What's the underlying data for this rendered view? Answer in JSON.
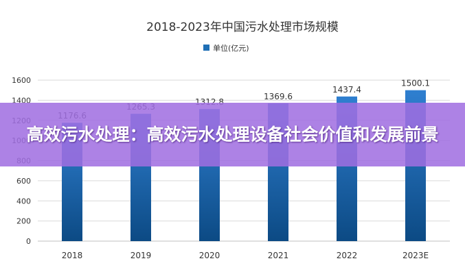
{
  "overlay": {
    "headline": "高效污水处理：高效污水处理设备社会价值和发展前景"
  },
  "colors": {
    "bar_top": "#2f7fd0",
    "bar_bottom": "#0c4a84",
    "legend_swatch": "#1f6fb5",
    "banner": "#a06ee1"
  },
  "chart_data": {
    "type": "bar",
    "title": "2018-2023年中国污水处理市场规模",
    "categories": [
      "2018",
      "2019",
      "2020",
      "2021",
      "2022",
      "2023E"
    ],
    "series": [
      {
        "name": "单位(亿元)",
        "values": [
          1176.6,
          1265.3,
          1312.8,
          1369.6,
          1437.4,
          1500.1
        ]
      }
    ],
    "value_labels": [
      "1176.6",
      "1265.3",
      "1312.8",
      "1369.6",
      "1437.4",
      "1500.1"
    ],
    "yticks": [
      0,
      200,
      400,
      600,
      800,
      1000,
      1200,
      1400,
      1600
    ],
    "ylim": [
      0,
      1600
    ],
    "xlabel": "",
    "ylabel": "",
    "legend_position": "top-center",
    "grid": true
  }
}
